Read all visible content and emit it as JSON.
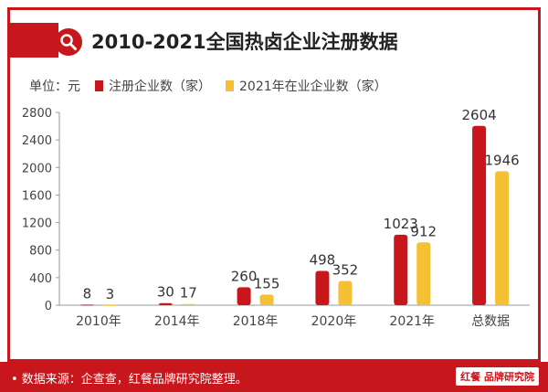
{
  "header": {
    "title": "2010-2021全国热卤企业注册数据"
  },
  "legend": {
    "unit": "单位：元",
    "items": [
      {
        "label": "注册企业数（家）",
        "color": "#c8161d"
      },
      {
        "label": "2021年在业企业数（家）",
        "color": "#f5c033"
      }
    ]
  },
  "chart_data": {
    "type": "bar",
    "categories": [
      "2010年",
      "2014年",
      "2018年",
      "2020年",
      "2021年",
      "总数据"
    ],
    "series": [
      {
        "name": "注册企业数（家）",
        "values": [
          8,
          30,
          260,
          498,
          1023,
          2604
        ],
        "color": "#c8161d"
      },
      {
        "name": "2021年在业企业数（家）",
        "values": [
          3,
          17,
          155,
          352,
          912,
          1946
        ],
        "color": "#f5c033"
      }
    ],
    "title": "2010-2021全国热卤企业注册数据",
    "xlabel": "",
    "ylabel": "单位：元",
    "ylim": [
      0,
      2800
    ],
    "yticks": [
      0,
      400,
      800,
      1200,
      1600,
      2000,
      2400,
      2800
    ],
    "grid": false,
    "legend_position": "top-left"
  },
  "footer": {
    "source": "• 数据来源：企查查，红餐品牌研究院整理。",
    "brand": "红餐 品牌研究院"
  }
}
